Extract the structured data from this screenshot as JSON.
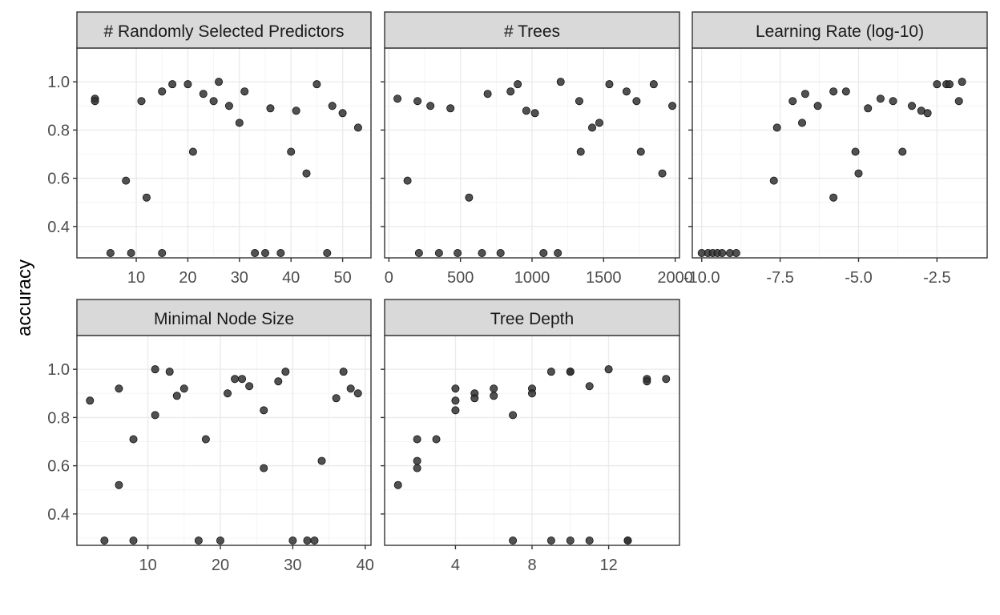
{
  "chart_data": {
    "type": "scatter",
    "ylabel": "accuracy",
    "ylim": [
      0.27,
      1.14
    ],
    "y_ticks": [
      0.4,
      0.6,
      0.8,
      1.0
    ],
    "y_tick_labels": [
      "0.4",
      "0.6",
      "0.8",
      "1.0"
    ],
    "theme": {
      "panel_border": "#333333",
      "strip_fill": "#d9d9d9",
      "grid_major": "#ebebeb",
      "grid_minor": "#f4f4f4",
      "point_fill": "#333333",
      "point_opacity": 0.85
    },
    "grid": true,
    "panels": [
      {
        "strip": "# Randomly Selected Predictors",
        "xlim": [
          -1.5,
          55.5
        ],
        "x_ticks": [
          10,
          20,
          30,
          40,
          50
        ],
        "x_tick_labels": [
          "10",
          "20",
          "30",
          "40",
          "50"
        ],
        "points": [
          [
            2,
            0.93
          ],
          [
            2,
            0.92
          ],
          [
            5,
            0.29
          ],
          [
            8,
            0.59
          ],
          [
            9,
            0.29
          ],
          [
            11,
            0.92
          ],
          [
            12,
            0.52
          ],
          [
            15,
            0.96
          ],
          [
            15,
            0.29
          ],
          [
            17,
            0.99
          ],
          [
            20,
            0.99
          ],
          [
            21,
            0.71
          ],
          [
            23,
            0.95
          ],
          [
            25,
            0.92
          ],
          [
            26,
            1.0
          ],
          [
            28,
            0.9
          ],
          [
            30,
            0.83
          ],
          [
            31,
            0.96
          ],
          [
            33,
            0.29
          ],
          [
            35,
            0.29
          ],
          [
            36,
            0.89
          ],
          [
            38,
            0.29
          ],
          [
            40,
            0.71
          ],
          [
            41,
            0.88
          ],
          [
            43,
            0.62
          ],
          [
            45,
            0.99
          ],
          [
            47,
            0.29
          ],
          [
            48,
            0.9
          ],
          [
            50,
            0.87
          ],
          [
            53,
            0.81
          ]
        ]
      },
      {
        "strip": "# Trees",
        "xlim": [
          -30,
          2030
        ],
        "x_ticks": [
          0,
          500,
          1000,
          1500,
          2000
        ],
        "x_tick_labels": [
          "0",
          "500",
          "1000",
          "1500",
          "2000"
        ],
        "points": [
          [
            60,
            0.93
          ],
          [
            130,
            0.59
          ],
          [
            200,
            0.92
          ],
          [
            210,
            0.29
          ],
          [
            290,
            0.9
          ],
          [
            350,
            0.29
          ],
          [
            430,
            0.89
          ],
          [
            480,
            0.29
          ],
          [
            560,
            0.52
          ],
          [
            650,
            0.29
          ],
          [
            690,
            0.95
          ],
          [
            780,
            0.29
          ],
          [
            850,
            0.96
          ],
          [
            900,
            0.99
          ],
          [
            960,
            0.88
          ],
          [
            1020,
            0.87
          ],
          [
            1080,
            0.29
          ],
          [
            1180,
            0.29
          ],
          [
            1200,
            1.0
          ],
          [
            1330,
            0.92
          ],
          [
            1340,
            0.71
          ],
          [
            1420,
            0.81
          ],
          [
            1470,
            0.83
          ],
          [
            1540,
            0.99
          ],
          [
            1660,
            0.96
          ],
          [
            1730,
            0.92
          ],
          [
            1760,
            0.71
          ],
          [
            1850,
            0.99
          ],
          [
            1910,
            0.62
          ],
          [
            1980,
            0.9
          ]
        ]
      },
      {
        "strip": "Learning Rate (log-10)",
        "xlim": [
          -10.3,
          -0.9
        ],
        "x_ticks": [
          -10.0,
          -7.5,
          -5.0,
          -2.5
        ],
        "x_tick_labels": [
          "-10.0",
          "-7.5",
          "-5.0",
          "-2.5"
        ],
        "points": [
          [
            -10.0,
            0.29
          ],
          [
            -9.8,
            0.29
          ],
          [
            -9.65,
            0.29
          ],
          [
            -9.5,
            0.29
          ],
          [
            -9.35,
            0.29
          ],
          [
            -9.1,
            0.29
          ],
          [
            -8.9,
            0.29
          ],
          [
            -7.7,
            0.59
          ],
          [
            -7.6,
            0.81
          ],
          [
            -7.1,
            0.92
          ],
          [
            -6.8,
            0.83
          ],
          [
            -6.7,
            0.95
          ],
          [
            -6.3,
            0.9
          ],
          [
            -5.8,
            0.96
          ],
          [
            -5.8,
            0.52
          ],
          [
            -5.4,
            0.96
          ],
          [
            -5.1,
            0.71
          ],
          [
            -5.0,
            0.62
          ],
          [
            -4.7,
            0.89
          ],
          [
            -4.3,
            0.93
          ],
          [
            -3.9,
            0.92
          ],
          [
            -3.6,
            0.71
          ],
          [
            -3.3,
            0.9
          ],
          [
            -3.0,
            0.88
          ],
          [
            -2.8,
            0.87
          ],
          [
            -2.5,
            0.99
          ],
          [
            -2.2,
            0.99
          ],
          [
            -2.1,
            0.99
          ],
          [
            -1.8,
            0.92
          ],
          [
            -1.7,
            1.0
          ]
        ]
      },
      {
        "strip": "Minimal Node Size",
        "xlim": [
          0.2,
          40.8
        ],
        "x_ticks": [
          10,
          20,
          30,
          40
        ],
        "x_tick_labels": [
          "10",
          "20",
          "30",
          "40"
        ],
        "points": [
          [
            2,
            0.87
          ],
          [
            4,
            0.29
          ],
          [
            6,
            0.92
          ],
          [
            6,
            0.52
          ],
          [
            8,
            0.71
          ],
          [
            8,
            0.29
          ],
          [
            11,
            1.0
          ],
          [
            11,
            0.81
          ],
          [
            13,
            0.99
          ],
          [
            14,
            0.89
          ],
          [
            15,
            0.92
          ],
          [
            17,
            0.29
          ],
          [
            18,
            0.71
          ],
          [
            20,
            0.29
          ],
          [
            21,
            0.9
          ],
          [
            22,
            0.96
          ],
          [
            23,
            0.96
          ],
          [
            24,
            0.93
          ],
          [
            26,
            0.83
          ],
          [
            26,
            0.59
          ],
          [
            28,
            0.95
          ],
          [
            29,
            0.99
          ],
          [
            30,
            0.29
          ],
          [
            32,
            0.29
          ],
          [
            33,
            0.29
          ],
          [
            34,
            0.62
          ],
          [
            36,
            0.88
          ],
          [
            37,
            0.99
          ],
          [
            38,
            0.92
          ],
          [
            39,
            0.9
          ]
        ]
      },
      {
        "strip": "Tree Depth",
        "xlim": [
          0.3,
          15.7
        ],
        "x_ticks": [
          4,
          8,
          12
        ],
        "x_tick_labels": [
          "4",
          "8",
          "12"
        ],
        "points": [
          [
            1,
            0.52
          ],
          [
            2,
            0.71
          ],
          [
            2,
            0.62
          ],
          [
            2,
            0.59
          ],
          [
            3,
            0.71
          ],
          [
            4,
            0.92
          ],
          [
            4,
            0.87
          ],
          [
            4,
            0.83
          ],
          [
            5,
            0.9
          ],
          [
            5,
            0.88
          ],
          [
            6,
            0.92
          ],
          [
            6,
            0.89
          ],
          [
            7,
            0.81
          ],
          [
            7,
            0.29
          ],
          [
            8,
            0.92
          ],
          [
            8,
            0.9
          ],
          [
            9,
            0.99
          ],
          [
            9,
            0.29
          ],
          [
            10,
            0.99
          ],
          [
            10,
            0.99
          ],
          [
            10,
            0.29
          ],
          [
            11,
            0.93
          ],
          [
            11,
            0.29
          ],
          [
            12,
            1.0
          ],
          [
            13,
            0.29
          ],
          [
            13,
            0.29
          ],
          [
            14,
            0.96
          ],
          [
            14,
            0.95
          ],
          [
            15,
            0.96
          ]
        ]
      }
    ]
  }
}
